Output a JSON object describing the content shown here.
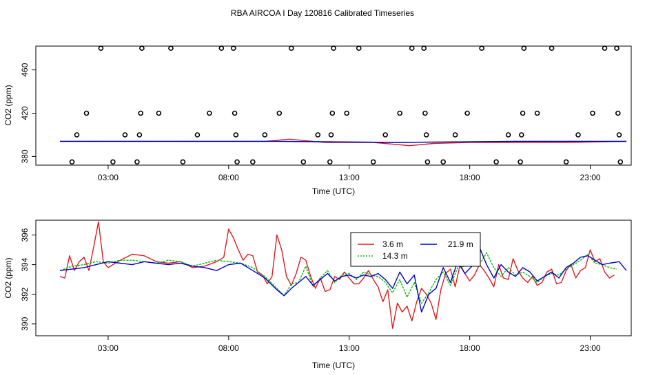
{
  "page": {
    "title": "RBA AIRCOA I  Day 120816  Calibrated Timeseries"
  },
  "colors": {
    "c36": "#e31a1c",
    "c143": "#00bb00",
    "c219": "#0000cc",
    "axis": "#000000"
  },
  "chart_data": [
    {
      "type": "scatter",
      "title": "RBA AIRCOA I  Day 120816  Calibrated Timeseries",
      "xlabel": "Time (UTC)",
      "ylabel": "CO2 (ppm)",
      "xlim": [
        0,
        24.7
      ],
      "ylim": [
        372,
        482
      ],
      "xticks": [
        3,
        8,
        13,
        18,
        23
      ],
      "xtick_labels": [
        "03:00",
        "08:00",
        "13:00",
        "18:00",
        "23:00"
      ],
      "yticks": [
        380,
        420,
        460
      ],
      "ytick_labels": [
        "380",
        "420",
        "460"
      ],
      "calibration_points": [
        {
          "x": 1.5,
          "y": 375
        },
        {
          "x": 2.1,
          "y": 420
        },
        {
          "x": 1.7,
          "y": 400
        },
        {
          "x": 2.7,
          "y": 480
        },
        {
          "x": 3.2,
          "y": 375
        },
        {
          "x": 3.7,
          "y": 400
        },
        {
          "x": 4.2,
          "y": 375
        },
        {
          "x": 4.3,
          "y": 400
        },
        {
          "x": 4.35,
          "y": 420
        },
        {
          "x": 4.4,
          "y": 480
        },
        {
          "x": 5.1,
          "y": 420
        },
        {
          "x": 5.6,
          "y": 480
        },
        {
          "x": 6.1,
          "y": 375
        },
        {
          "x": 6.7,
          "y": 400
        },
        {
          "x": 7.2,
          "y": 420
        },
        {
          "x": 7.7,
          "y": 480
        },
        {
          "x": 8.2,
          "y": 480
        },
        {
          "x": 8.25,
          "y": 420
        },
        {
          "x": 8.3,
          "y": 400
        },
        {
          "x": 8.35,
          "y": 375
        },
        {
          "x": 9.0,
          "y": 375
        },
        {
          "x": 9.5,
          "y": 400
        },
        {
          "x": 10.1,
          "y": 420
        },
        {
          "x": 10.6,
          "y": 480
        },
        {
          "x": 11.1,
          "y": 375
        },
        {
          "x": 11.7,
          "y": 400
        },
        {
          "x": 12.2,
          "y": 375
        },
        {
          "x": 12.25,
          "y": 400
        },
        {
          "x": 12.3,
          "y": 420
        },
        {
          "x": 12.35,
          "y": 480
        },
        {
          "x": 12.9,
          "y": 420
        },
        {
          "x": 13.4,
          "y": 480
        },
        {
          "x": 14.0,
          "y": 375
        },
        {
          "x": 14.5,
          "y": 400
        },
        {
          "x": 15.1,
          "y": 420
        },
        {
          "x": 15.6,
          "y": 480
        },
        {
          "x": 16.1,
          "y": 480
        },
        {
          "x": 16.15,
          "y": 420
        },
        {
          "x": 16.2,
          "y": 400
        },
        {
          "x": 16.25,
          "y": 375
        },
        {
          "x": 16.9,
          "y": 375
        },
        {
          "x": 17.4,
          "y": 400
        },
        {
          "x": 17.9,
          "y": 420
        },
        {
          "x": 18.5,
          "y": 480
        },
        {
          "x": 19.1,
          "y": 375
        },
        {
          "x": 19.6,
          "y": 400
        },
        {
          "x": 20.1,
          "y": 375
        },
        {
          "x": 20.15,
          "y": 400
        },
        {
          "x": 20.2,
          "y": 420
        },
        {
          "x": 20.25,
          "y": 480
        },
        {
          "x": 20.8,
          "y": 420
        },
        {
          "x": 21.4,
          "y": 480
        },
        {
          "x": 22.0,
          "y": 375
        },
        {
          "x": 22.5,
          "y": 400
        },
        {
          "x": 23.1,
          "y": 420
        },
        {
          "x": 23.6,
          "y": 480
        },
        {
          "x": 24.1,
          "y": 480
        },
        {
          "x": 24.15,
          "y": 420
        },
        {
          "x": 24.2,
          "y": 400
        },
        {
          "x": 24.25,
          "y": 375
        }
      ],
      "series": [
        {
          "name": "3.6 m",
          "x": [
            1,
            3,
            5,
            7,
            9.5,
            10.5,
            12,
            14,
            15.5,
            16.5,
            18,
            20,
            22,
            24.5
          ],
          "y": [
            394,
            394,
            394,
            394,
            394,
            396,
            393,
            393,
            390,
            392,
            393,
            393,
            393,
            394
          ]
        },
        {
          "name": "14.3 m",
          "x": [
            1,
            5,
            10,
            15,
            20,
            24.5
          ],
          "y": [
            394,
            394,
            394,
            393,
            394,
            394
          ]
        },
        {
          "name": "21.9 m",
          "x": [
            1,
            5,
            10,
            15,
            20,
            24.5
          ],
          "y": [
            394,
            394,
            394,
            393,
            394,
            394
          ]
        }
      ]
    },
    {
      "type": "line",
      "xlabel": "Time (UTC)",
      "ylabel": "CO2 (ppm)",
      "xlim": [
        0,
        24.7
      ],
      "ylim": [
        389.2,
        397.0
      ],
      "xticks": [
        3,
        8,
        13,
        18,
        23
      ],
      "xtick_labels": [
        "03:00",
        "08:00",
        "13:00",
        "18:00",
        "23:00"
      ],
      "yticks": [
        390,
        392,
        394,
        396
      ],
      "ytick_labels": [
        "390",
        "392",
        "394",
        "396"
      ],
      "legend": {
        "position": "top-center",
        "entries": [
          "3.6 m",
          "21.9 m",
          "14.3 m"
        ]
      },
      "series": [
        {
          "name": "3.6 m",
          "x": [
            1.0,
            1.2,
            1.4,
            1.6,
            1.8,
            2.0,
            2.2,
            2.4,
            2.6,
            2.8,
            3.0,
            3.5,
            4.0,
            4.5,
            5.0,
            5.5,
            6.0,
            6.5,
            7.0,
            7.5,
            7.8,
            8.0,
            8.2,
            8.4,
            8.6,
            8.8,
            9.0,
            9.2,
            9.4,
            9.6,
            9.8,
            10.0,
            10.2,
            10.4,
            10.6,
            10.8,
            11.0,
            11.2,
            11.4,
            11.6,
            11.8,
            12.0,
            12.2,
            12.4,
            12.6,
            12.8,
            13.0,
            13.2,
            13.4,
            13.6,
            13.8,
            14.0,
            14.2,
            14.4,
            14.6,
            14.8,
            15.0,
            15.2,
            15.4,
            15.6,
            15.8,
            16.0,
            16.2,
            16.4,
            16.6,
            16.8,
            17.0,
            17.2,
            17.4,
            17.6,
            17.8,
            18.0,
            18.2,
            18.4,
            18.6,
            18.8,
            19.0,
            19.2,
            19.4,
            19.6,
            19.8,
            20.0,
            20.2,
            20.4,
            20.6,
            20.8,
            21.0,
            21.2,
            21.4,
            21.6,
            21.8,
            22.0,
            22.2,
            22.4,
            22.6,
            22.8,
            23.0,
            23.2,
            23.4,
            23.6,
            23.8,
            24.0
          ],
          "y": [
            393.2,
            393.1,
            394.6,
            393.6,
            394.2,
            394.5,
            393.6,
            395.2,
            396.9,
            394.2,
            393.8,
            394.3,
            394.7,
            394.6,
            394.2,
            394.1,
            394.2,
            393.8,
            393.9,
            394.2,
            394.5,
            396.4,
            395.8,
            395.0,
            394.3,
            394.7,
            394.6,
            393.5,
            393.3,
            392.7,
            393.2,
            396.0,
            395.0,
            393.2,
            392.6,
            393.4,
            394.5,
            394.3,
            393.2,
            392.4,
            393.1,
            392.2,
            392.3,
            393.2,
            393.0,
            393.5,
            393.1,
            392.7,
            392.7,
            393.1,
            393.6,
            393.0,
            392.5,
            391.5,
            392.3,
            389.7,
            391.4,
            390.8,
            391.2,
            390.2,
            391.5,
            392.4,
            392.0,
            391.4,
            390.3,
            392.3,
            393.4,
            393.7,
            392.5,
            394.0,
            393.4,
            392.9,
            393.3,
            394.0,
            393.6,
            393.1,
            392.5,
            394.0,
            393.1,
            393.0,
            394.4,
            393.6,
            393.1,
            392.8,
            393.2,
            392.6,
            392.8,
            393.5,
            393.7,
            392.7,
            392.8,
            393.6,
            394.0,
            393.1,
            393.6,
            393.8,
            395.0,
            394.2,
            394.4,
            393.5,
            393.1,
            393.3
          ]
        },
        {
          "name": "14.3 m",
          "x": [
            1.0,
            1.5,
            2.0,
            2.5,
            3.0,
            3.5,
            4.0,
            4.5,
            5.0,
            5.5,
            6.0,
            6.5,
            7.0,
            7.5,
            8.0,
            8.5,
            9.0,
            9.5,
            10.0,
            10.3,
            10.6,
            10.9,
            11.2,
            11.5,
            11.8,
            12.1,
            12.4,
            12.7,
            13.0,
            13.3,
            13.6,
            13.9,
            14.2,
            14.5,
            14.8,
            15.1,
            15.4,
            15.7,
            16.0,
            16.3,
            16.6,
            16.9,
            17.2,
            17.5,
            17.8,
            18.1,
            18.4,
            18.7,
            19.0,
            19.3,
            19.6,
            19.9,
            20.2,
            20.5,
            20.8,
            21.1,
            21.4,
            21.7,
            22.0,
            22.3,
            22.6,
            22.9,
            23.2,
            23.5,
            23.8,
            24.1
          ],
          "y": [
            393.6,
            393.9,
            394.0,
            394.2,
            394.1,
            394.3,
            394.3,
            394.2,
            394.1,
            394.3,
            394.2,
            393.9,
            394.1,
            394.3,
            394.2,
            394.1,
            393.8,
            393.2,
            392.4,
            391.9,
            392.7,
            392.8,
            393.9,
            392.5,
            393.1,
            393.6,
            392.8,
            393.3,
            393.4,
            393.0,
            393.5,
            393.3,
            393.2,
            392.8,
            392.1,
            393.0,
            391.8,
            392.8,
            391.4,
            392.1,
            393.0,
            393.5,
            392.6,
            393.8,
            393.9,
            394.1,
            394.0,
            394.8,
            393.8,
            393.2,
            393.8,
            393.3,
            393.5,
            393.2,
            392.8,
            393.2,
            393.4,
            393.3,
            393.7,
            394.0,
            394.3,
            394.7,
            394.1,
            394.0,
            393.8,
            393.7
          ]
        },
        {
          "name": "21.9 m",
          "x": [
            1.0,
            1.5,
            2.0,
            2.5,
            3.0,
            3.5,
            4.0,
            4.5,
            5.0,
            5.5,
            6.0,
            6.5,
            7.0,
            7.5,
            8.0,
            8.5,
            9.0,
            9.5,
            10.0,
            10.3,
            10.6,
            10.9,
            11.2,
            11.5,
            11.8,
            12.1,
            12.4,
            12.7,
            13.0,
            13.3,
            13.6,
            13.9,
            14.2,
            14.5,
            14.8,
            15.1,
            15.4,
            15.7,
            16.0,
            16.3,
            16.6,
            16.9,
            17.2,
            17.5,
            17.8,
            18.1,
            18.4,
            18.7,
            19.0,
            19.3,
            19.6,
            19.9,
            20.2,
            20.5,
            20.8,
            21.1,
            21.4,
            21.7,
            22.0,
            22.3,
            22.6,
            22.9,
            23.2,
            23.5,
            23.8,
            24.2,
            24.5
          ],
          "y": [
            393.6,
            393.7,
            393.8,
            394.0,
            394.2,
            394.1,
            394.0,
            394.2,
            394.1,
            394.0,
            394.1,
            393.9,
            393.8,
            393.6,
            394.0,
            394.1,
            393.6,
            393.1,
            392.3,
            391.9,
            392.4,
            392.8,
            393.2,
            392.6,
            393.0,
            393.4,
            392.9,
            393.2,
            393.3,
            393.1,
            393.3,
            393.2,
            393.4,
            393.0,
            392.4,
            393.5,
            392.7,
            393.3,
            390.8,
            392.0,
            392.4,
            393.8,
            392.8,
            394.2,
            393.4,
            393.9,
            395.2,
            394.0,
            393.1,
            394.0,
            393.5,
            393.2,
            393.8,
            393.5,
            392.9,
            393.2,
            393.5,
            393.1,
            393.8,
            394.1,
            394.5,
            394.6,
            394.3,
            394.0,
            394.1,
            394.2,
            393.6
          ]
        }
      ]
    }
  ]
}
